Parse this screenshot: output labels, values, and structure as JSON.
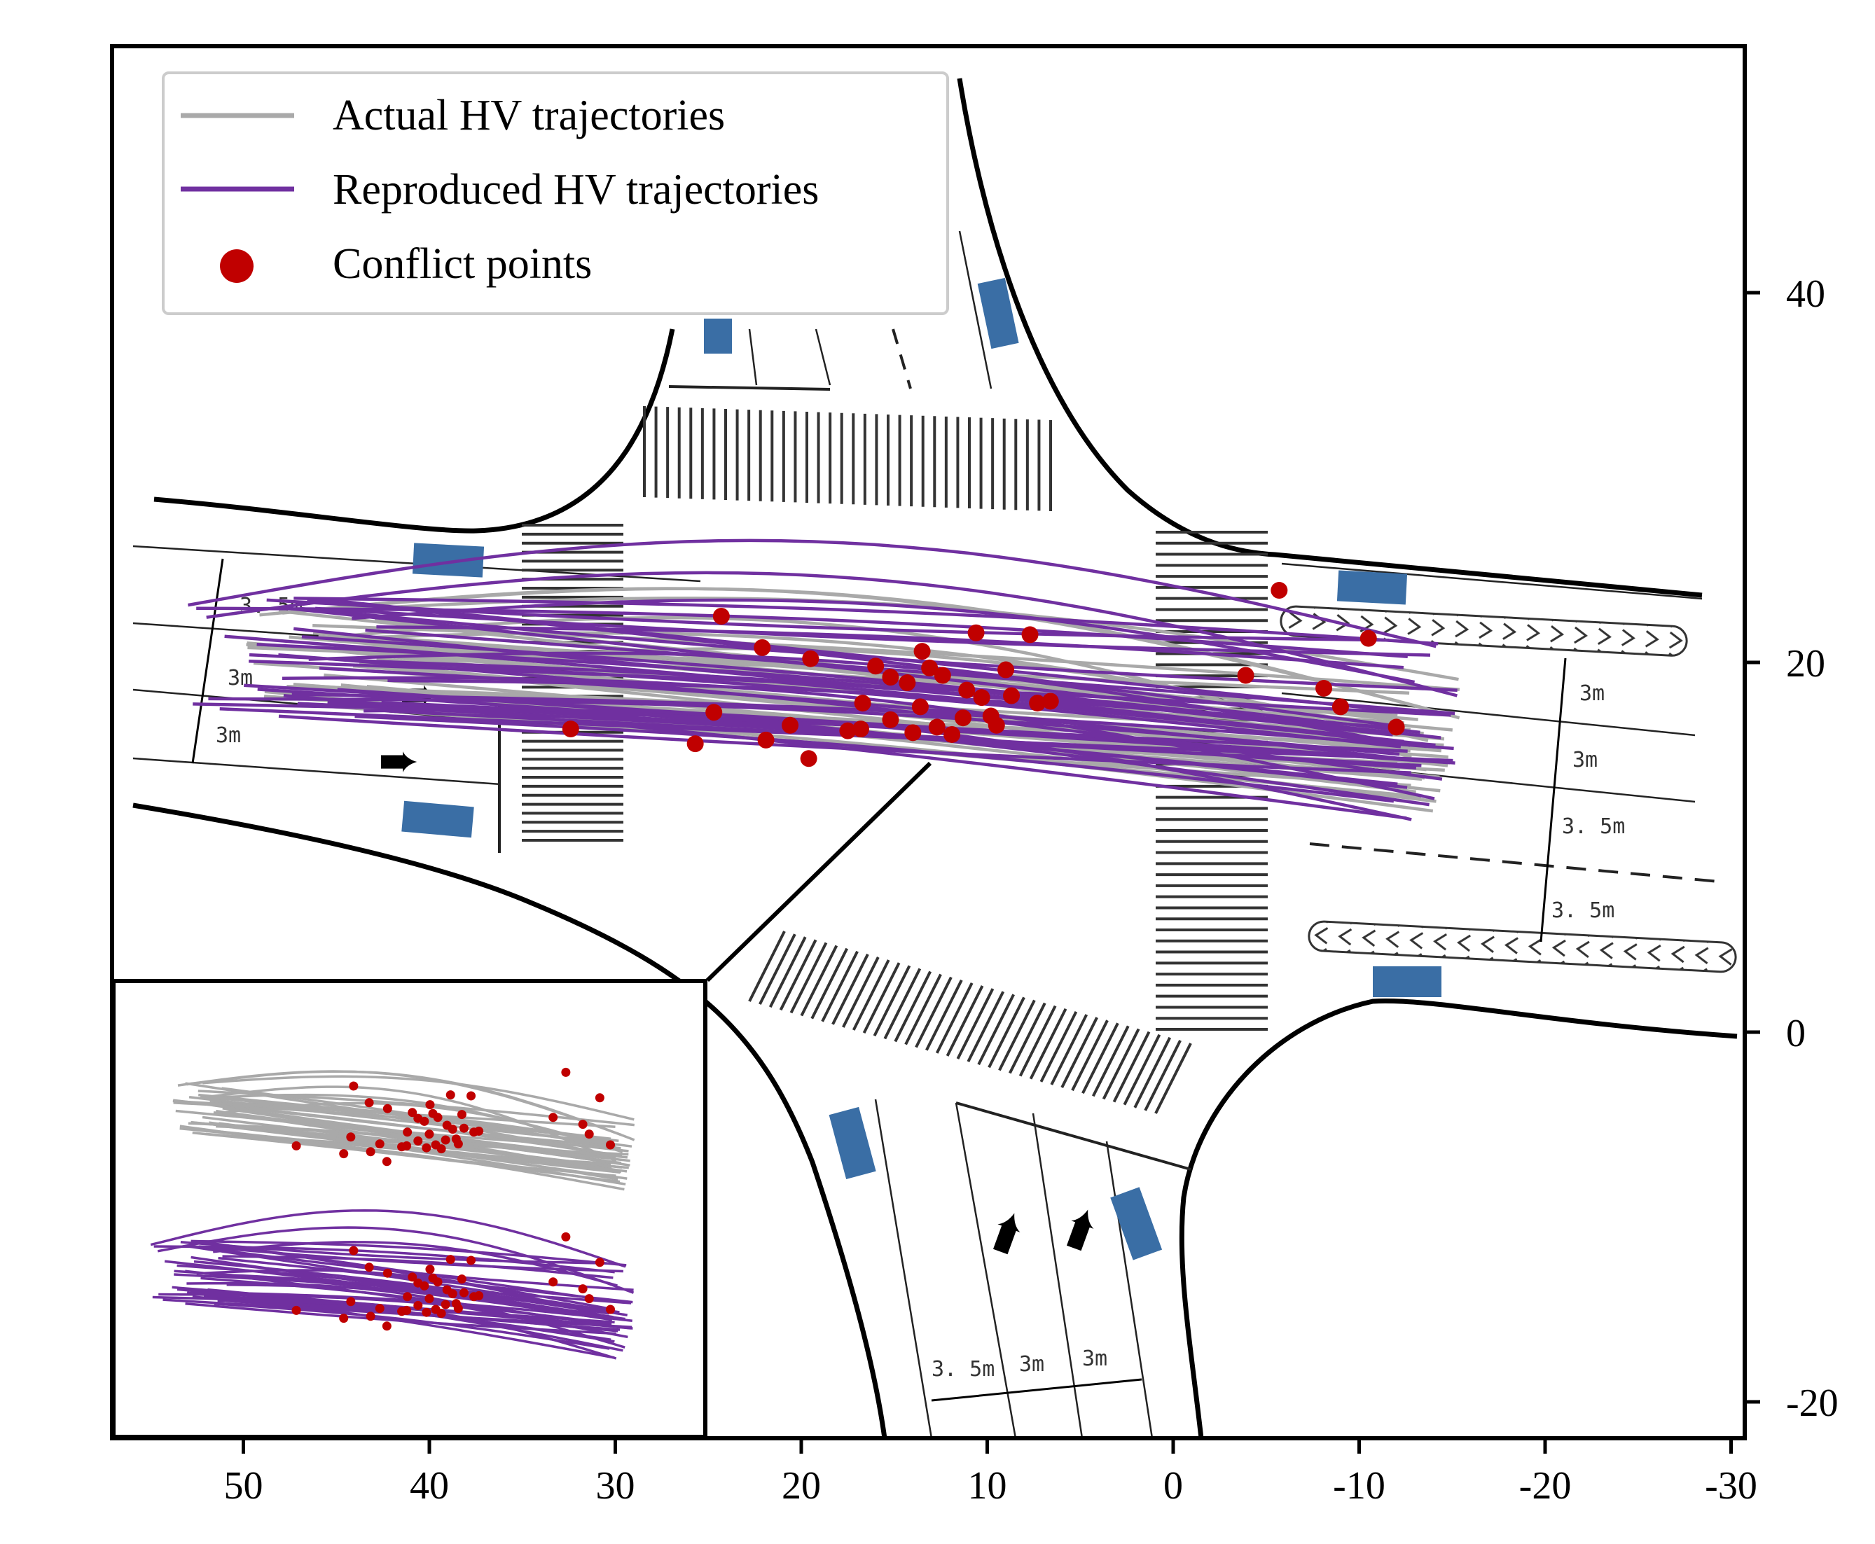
{
  "chart_data": {
    "type": "line",
    "x_axis": {
      "reversed": true,
      "range": [
        57,
        -31
      ],
      "ticks": [
        50,
        40,
        30,
        20,
        10,
        0,
        -10,
        -20,
        -30
      ],
      "tick_labels": [
        "50",
        "40",
        "30",
        "20",
        "10",
        "0",
        "-10",
        "-20",
        "-30"
      ],
      "label": ""
    },
    "y_axis": {
      "position": "right",
      "range": [
        -22,
        53
      ],
      "ticks": [
        40,
        20,
        0,
        -20
      ],
      "tick_labels": [
        "40",
        "20",
        "0",
        "-20"
      ],
      "label": ""
    },
    "legend": {
      "placement": "top-left",
      "entries": [
        {
          "label": "Actual HV trajectories",
          "color": "#a9a9a9",
          "marker": "line"
        },
        {
          "label": "Reproduced HV trajectories",
          "color": "#7030a0",
          "marker": "line"
        },
        {
          "label": "Conflict points",
          "color": "#c00000",
          "marker": "circle"
        }
      ]
    },
    "series": [
      {
        "name": "Actual HV trajectories",
        "color": "#a9a9a9",
        "x_range": [
          50,
          -15
        ],
        "y_range": [
          15,
          24
        ],
        "count": 40
      },
      {
        "name": "Reproduced HV trajectories",
        "color": "#7030a0",
        "x_range": [
          53,
          -15
        ],
        "y_range": [
          13.5,
          24.5
        ],
        "count": 40
      }
    ],
    "conflict_points": {
      "color": "#c00000",
      "points": [
        [
          24.3,
          22.5
        ],
        [
          22.1,
          20.8
        ],
        [
          19.5,
          20.2
        ],
        [
          16.0,
          19.8
        ],
        [
          15.2,
          19.2
        ],
        [
          13.5,
          20.6
        ],
        [
          10.6,
          21.6
        ],
        [
          7.7,
          21.5
        ],
        [
          -5.7,
          23.9
        ],
        [
          -10.5,
          21.3
        ],
        [
          9.0,
          19.6
        ],
        [
          12.4,
          19.3
        ],
        [
          14.3,
          18.9
        ],
        [
          11.1,
          18.5
        ],
        [
          10.3,
          18.1
        ],
        [
          16.7,
          17.8
        ],
        [
          13.6,
          17.6
        ],
        [
          8.7,
          18.2
        ],
        [
          7.3,
          17.8
        ],
        [
          11.3,
          17.0
        ],
        [
          15.2,
          16.9
        ],
        [
          9.8,
          17.1
        ],
        [
          12.7,
          16.5
        ],
        [
          14.0,
          16.2
        ],
        [
          24.7,
          17.3
        ],
        [
          16.8,
          16.4
        ],
        [
          32.4,
          16.4
        ],
        [
          25.7,
          15.6
        ],
        [
          19.6,
          14.8
        ],
        [
          21.9,
          15.8
        ],
        [
          11.9,
          16.1
        ],
        [
          17.5,
          16.3
        ],
        [
          20.6,
          16.6
        ],
        [
          9.5,
          16.6
        ],
        [
          6.6,
          17.9
        ],
        [
          13.1,
          19.7
        ],
        [
          -3.9,
          19.3
        ],
        [
          -8.1,
          18.6
        ],
        [
          -9.0,
          17.6
        ],
        [
          -12.0,
          16.5
        ]
      ]
    },
    "inset": {
      "panels": [
        "Actual HV trajectories",
        "Reproduced HV trajectories"
      ]
    },
    "dimension_labels": [
      "3. 5m",
      "3m",
      "3m",
      "3m",
      "3m",
      "3. 5m",
      "3. 5m",
      "3. 5m",
      "3m",
      "3m"
    ]
  }
}
